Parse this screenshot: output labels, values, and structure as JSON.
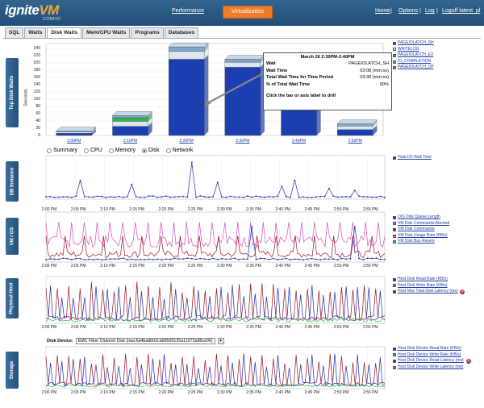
{
  "header": {
    "logo_main": "ignite",
    "logo_accent": "VM",
    "logo_sub": "CONFIO",
    "performance_link": "Performance",
    "virtualization_button": "Virtualization",
    "links": [
      "Home",
      "Options",
      "Log",
      "Logoff latest_pl"
    ],
    "separators": [
      "|",
      "|",
      "|"
    ]
  },
  "tabs": [
    "SQL",
    "Waits",
    "Disk Waits",
    "Mem/CPU Waits",
    "Programs",
    "Databases"
  ],
  "active_tab": "Disk Waits",
  "sidebar": [
    "Top Disk Waits",
    "DB Instance",
    "VM / OS",
    "Physical Host",
    "Storage"
  ],
  "top_chart": {
    "ylabel": "Seconds",
    "yticks": [
      "0",
      "20",
      "40",
      "60",
      "80",
      "100",
      "120",
      "140",
      "160",
      "180",
      "200",
      "220",
      "240"
    ],
    "legend": [
      "PAGEIOLATCH_SH",
      "WRITELOG",
      "PAGEIOLATCH_EX",
      "IO_COMPLETION",
      "PAGEIOLATCH_UP"
    ],
    "legend_colors": [
      "#1b3fb0",
      "#dde6f0",
      "#2eb84a",
      "#7fa7c9",
      "#d04fc0"
    ]
  },
  "tooltip": {
    "title": "March 26 2:30PM-2:40PM",
    "rows": [
      {
        "label": "Wait",
        "value": "PAGEIOLATCH_SH"
      },
      {
        "label": "Wait Time",
        "value": "03:08 (mm:ss)"
      },
      {
        "label": "Total Wait Time for Time Period",
        "value": "03:30 (mm:ss)"
      },
      {
        "label": "% of Total Wait Time",
        "value": "90%"
      }
    ],
    "footer": "Click the bar or axis label to drill"
  },
  "radio_options": [
    "Summary",
    "CPU",
    "Memory",
    "Disk",
    "Network"
  ],
  "radio_selected": "Disk",
  "time_ticks": [
    "2:00 PM",
    "2:05 PM",
    "2:10 PM",
    "2:15 PM",
    "2:20 PM",
    "2:25 PM",
    "2:30 PM",
    "2:35 PM",
    "2:40 PM",
    "2:45 PM",
    "2:50 PM",
    "2:55 PM"
  ],
  "db_legend": [
    "Total I/O Wait Time"
  ],
  "vm_legend": [
    "O/S Disk Queue Length",
    "VM Disk Commands Aborted",
    "VM Disk Commands",
    "VM Disk Usage Rate (KB/s)",
    "VM Disk Bus Resets"
  ],
  "vm_legend_colors": [
    "#1b2fb0",
    "#d04fc0",
    "#a01020",
    "#d04fc0",
    "#4fb0d0"
  ],
  "host_legend": [
    "Host Disk Read Rate (KB/s)",
    "Host Disk Write Rate (KB/s)",
    "Host Max Total Disk Latency (ms)"
  ],
  "host_legend_colors": [
    "#1b2fb0",
    "#2eb84a",
    "#a01020"
  ],
  "storage_legend": [
    "Host Disk Device Read Rate (KB/s)",
    "Host Disk Device Write Rate (KB/s)",
    "Host Disk Device Read Latency (ms)",
    "Host Disk Device Write Latency (ms)"
  ],
  "storage_legend_colors": [
    "#1b2fb0",
    "#2eb84a",
    "#a01020",
    "#d04fc0"
  ],
  "disk_device_label": "Disk Device:",
  "disk_device_value": "EMC Fiber Channel Disk (naa.6a4badb02cdd9500135a11573a98ce06)",
  "chart_data": {
    "type": "bar",
    "categories": [
      "2:00PM",
      "2:10PM",
      "2:20PM",
      "2:30PM",
      "2:40PM",
      "2:50PM"
    ],
    "series": [
      {
        "name": "PAGEIOLATCH_SH",
        "values": [
          6,
          25,
          210,
          188,
          90,
          16
        ]
      },
      {
        "name": "WRITELOG",
        "values": [
          4,
          14,
          22,
          14,
          0,
          10
        ]
      },
      {
        "name": "PAGEIOLATCH_EX",
        "values": [
          0,
          10,
          0,
          0,
          0,
          0
        ]
      },
      {
        "name": "IO_COMPLETION",
        "values": [
          2,
          6,
          12,
          8,
          0,
          6
        ]
      },
      {
        "name": "PAGEIOLATCH_UP",
        "values": [
          0,
          0,
          0,
          0,
          0,
          0
        ]
      }
    ],
    "ylabel": "Seconds",
    "ylim": [
      0,
      240
    ]
  }
}
